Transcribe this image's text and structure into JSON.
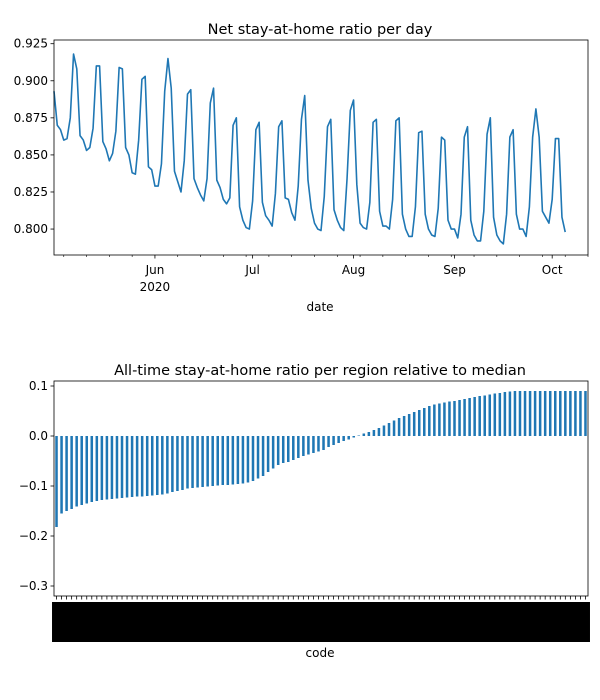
{
  "chart_data": [
    {
      "type": "line",
      "title": "Net stay-at-home ratio per day",
      "xlabel": "date",
      "ylabel": "",
      "x_start": "2020-05-01",
      "x_end": "2020-10-12",
      "ylim": [
        0.7825,
        0.9275
      ],
      "yticks": [
        0.8,
        0.825,
        0.85,
        0.875,
        0.9,
        0.925
      ],
      "ytick_labels": [
        "0.800",
        "0.825",
        "0.850",
        "0.875",
        "0.900",
        "0.925"
      ],
      "major_ticks": [
        {
          "date": "2020-06-01",
          "label": "Jun",
          "sublabel": "2020"
        },
        {
          "date": "2020-07-01",
          "label": "Jul",
          "sublabel": ""
        },
        {
          "date": "2020-08-01",
          "label": "Aug",
          "sublabel": ""
        },
        {
          "date": "2020-09-01",
          "label": "Sep",
          "sublabel": ""
        },
        {
          "date": "2020-10-01",
          "label": "Oct",
          "sublabel": ""
        }
      ],
      "minor_tick_dates": [
        "2020-05-04",
        "2020-05-11",
        "2020-05-18",
        "2020-05-25",
        "2020-06-08",
        "2020-06-15",
        "2020-06-22",
        "2020-06-29",
        "2020-07-06",
        "2020-07-13",
        "2020-07-20",
        "2020-07-27",
        "2020-08-03",
        "2020-08-10",
        "2020-08-17",
        "2020-08-24",
        "2020-08-31",
        "2020-09-07",
        "2020-09-14",
        "2020-09-21",
        "2020-09-28",
        "2020-10-05",
        "2020-10-12"
      ],
      "grid": false,
      "color": "#1f77b4",
      "series": [
        {
          "values": [
            0.893,
            0.87,
            0.867,
            0.86,
            0.861,
            0.875,
            0.918,
            0.908,
            0.863,
            0.86,
            0.853,
            0.855,
            0.868,
            0.91,
            0.91,
            0.859,
            0.854,
            0.846,
            0.851,
            0.866,
            0.909,
            0.908,
            0.855,
            0.85,
            0.838,
            0.837,
            0.86,
            0.901,
            0.903,
            0.842,
            0.84,
            0.829,
            0.829,
            0.844,
            0.893,
            0.915,
            0.895,
            0.839,
            0.832,
            0.825,
            0.846,
            0.891,
            0.894,
            0.834,
            0.828,
            0.823,
            0.819,
            0.834,
            0.885,
            0.895,
            0.833,
            0.828,
            0.82,
            0.817,
            0.821,
            0.87,
            0.875,
            0.815,
            0.806,
            0.801,
            0.8,
            0.819,
            0.867,
            0.872,
            0.818,
            0.809,
            0.806,
            0.802,
            0.824,
            0.869,
            0.873,
            0.821,
            0.82,
            0.811,
            0.806,
            0.829,
            0.874,
            0.89,
            0.833,
            0.814,
            0.804,
            0.8,
            0.799,
            0.822,
            0.869,
            0.874,
            0.813,
            0.806,
            0.801,
            0.799,
            0.834,
            0.88,
            0.887,
            0.83,
            0.804,
            0.801,
            0.8,
            0.818,
            0.872,
            0.874,
            0.812,
            0.802,
            0.802,
            0.8,
            0.82,
            0.873,
            0.875,
            0.81,
            0.8,
            0.795,
            0.795,
            0.815,
            0.865,
            0.866,
            0.81,
            0.8,
            0.796,
            0.795,
            0.814,
            0.862,
            0.86,
            0.806,
            0.8,
            0.8,
            0.794,
            0.81,
            0.862,
            0.869,
            0.806,
            0.796,
            0.792,
            0.792,
            0.812,
            0.864,
            0.875,
            0.808,
            0.796,
            0.792,
            0.79,
            0.81,
            0.862,
            0.867,
            0.81,
            0.8,
            0.8,
            0.795,
            0.815,
            0.862,
            0.881,
            0.862,
            0.812,
            0.808,
            0.804,
            0.82,
            0.861,
            0.861,
            0.808,
            0.798
          ]
        }
      ]
    },
    {
      "type": "bar",
      "title": "All-time stay-at-home ratio per region relative to median",
      "xlabel": "code",
      "ylabel": "",
      "ylim": [
        -0.32,
        0.11
      ],
      "yticks": [
        -0.3,
        -0.2,
        -0.1,
        0.0,
        0.1
      ],
      "ytick_labels": [
        "−0.3",
        "−0.2",
        "−0.1",
        "0.0",
        "0.1"
      ],
      "grid": false,
      "color": "#1f77b4",
      "bar_count": 106,
      "values": [
        -0.182,
        -0.155,
        -0.15,
        -0.146,
        -0.141,
        -0.138,
        -0.135,
        -0.132,
        -0.13,
        -0.128,
        -0.127,
        -0.126,
        -0.125,
        -0.124,
        -0.123,
        -0.122,
        -0.121,
        -0.121,
        -0.12,
        -0.119,
        -0.118,
        -0.117,
        -0.115,
        -0.112,
        -0.11,
        -0.108,
        -0.105,
        -0.104,
        -0.103,
        -0.102,
        -0.101,
        -0.1,
        -0.099,
        -0.098,
        -0.098,
        -0.097,
        -0.096,
        -0.095,
        -0.093,
        -0.09,
        -0.085,
        -0.08,
        -0.072,
        -0.065,
        -0.058,
        -0.054,
        -0.052,
        -0.048,
        -0.044,
        -0.04,
        -0.037,
        -0.034,
        -0.031,
        -0.028,
        -0.022,
        -0.018,
        -0.014,
        -0.01,
        -0.007,
        -0.003,
        0.001,
        0.005,
        0.008,
        0.012,
        0.016,
        0.021,
        0.026,
        0.031,
        0.036,
        0.04,
        0.044,
        0.048,
        0.052,
        0.056,
        0.06,
        0.063,
        0.065,
        0.067,
        0.069,
        0.07,
        0.072,
        0.074,
        0.076,
        0.078,
        0.08,
        0.081,
        0.083,
        0.085,
        0.086,
        0.088,
        0.089,
        0.09,
        0.09,
        0.09,
        0.09,
        0.09,
        0.09,
        0.09,
        0.09,
        0.09,
        0.09,
        0.09,
        0.09,
        0.09,
        0.09,
        0.09
      ]
    }
  ]
}
